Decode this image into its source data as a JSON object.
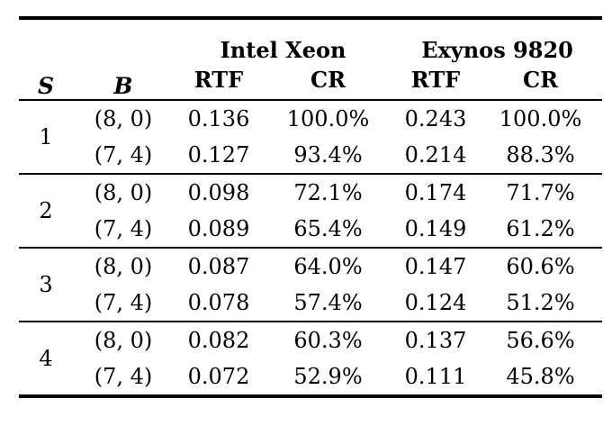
{
  "table": {
    "col_s_label": "S",
    "col_b_label": "B",
    "groups": [
      {
        "label": "Intel Xeon",
        "sub": [
          "RTF",
          "CR"
        ]
      },
      {
        "label": "Exynos 9820",
        "sub": [
          "RTF",
          "CR"
        ]
      }
    ],
    "blocks": [
      {
        "s": "1",
        "rows": [
          {
            "b": "(8, 0)",
            "cells": [
              "0.136",
              "100.0%",
              "0.243",
              "100.0%"
            ]
          },
          {
            "b": "(7, 4)",
            "cells": [
              "0.127",
              "93.4%",
              "0.214",
              "88.3%"
            ]
          }
        ]
      },
      {
        "s": "2",
        "rows": [
          {
            "b": "(8, 0)",
            "cells": [
              "0.098",
              "72.1%",
              "0.174",
              "71.7%"
            ]
          },
          {
            "b": "(7, 4)",
            "cells": [
              "0.089",
              "65.4%",
              "0.149",
              "61.2%"
            ]
          }
        ]
      },
      {
        "s": "3",
        "rows": [
          {
            "b": "(8, 0)",
            "cells": [
              "0.087",
              "64.0%",
              "0.147",
              "60.6%"
            ]
          },
          {
            "b": "(7, 4)",
            "cells": [
              "0.078",
              "57.4%",
              "0.124",
              "51.2%"
            ]
          }
        ]
      },
      {
        "s": "4",
        "rows": [
          {
            "b": "(8, 0)",
            "cells": [
              "0.082",
              "60.3%",
              "0.137",
              "56.6%"
            ]
          },
          {
            "b": "(7, 4)",
            "cells": [
              "0.072",
              "52.9%",
              "0.111",
              "45.8%"
            ]
          }
        ]
      }
    ]
  }
}
